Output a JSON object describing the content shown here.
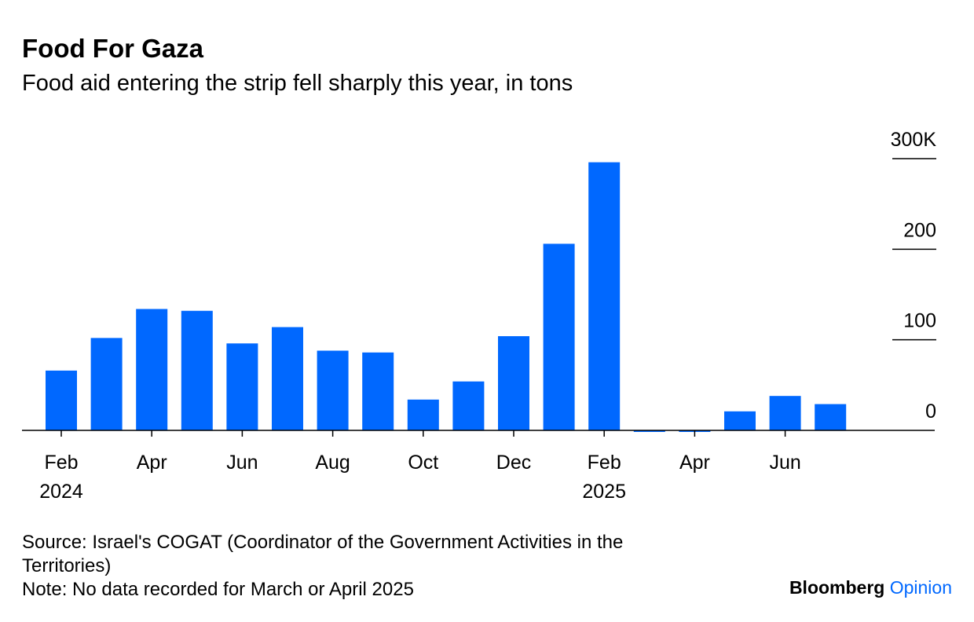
{
  "chart_data": {
    "type": "bar",
    "title": "Food For Gaza",
    "subtitle": "Food aid entering the strip fell sharply this year, in tons",
    "categories": [
      "Feb",
      null,
      "Apr",
      null,
      "Jun",
      null,
      "Aug",
      null,
      "Oct",
      null,
      "Dec",
      null,
      "Feb",
      null,
      "Apr",
      null,
      "Jun",
      null
    ],
    "category_years": [
      "2024",
      null,
      null,
      null,
      null,
      null,
      null,
      null,
      null,
      null,
      null,
      null,
      "2025",
      null,
      null,
      null,
      null,
      null
    ],
    "values": [
      66,
      102,
      134,
      132,
      96,
      114,
      88,
      86,
      34,
      54,
      104,
      206,
      296,
      0,
      0,
      21,
      38,
      29
    ],
    "color": "#0068ff",
    "ylim": [
      0,
      300
    ],
    "yticks": [
      0,
      100,
      200,
      {
        "value": 300,
        "label": "300K"
      }
    ],
    "source": "Source: Israel's COGAT (Coordinator of the Government Activities in the Territories)",
    "note": "Note: No data recorded for March or April 2025",
    "brand": "Bloomberg",
    "brand_suffix": "Opinion"
  }
}
